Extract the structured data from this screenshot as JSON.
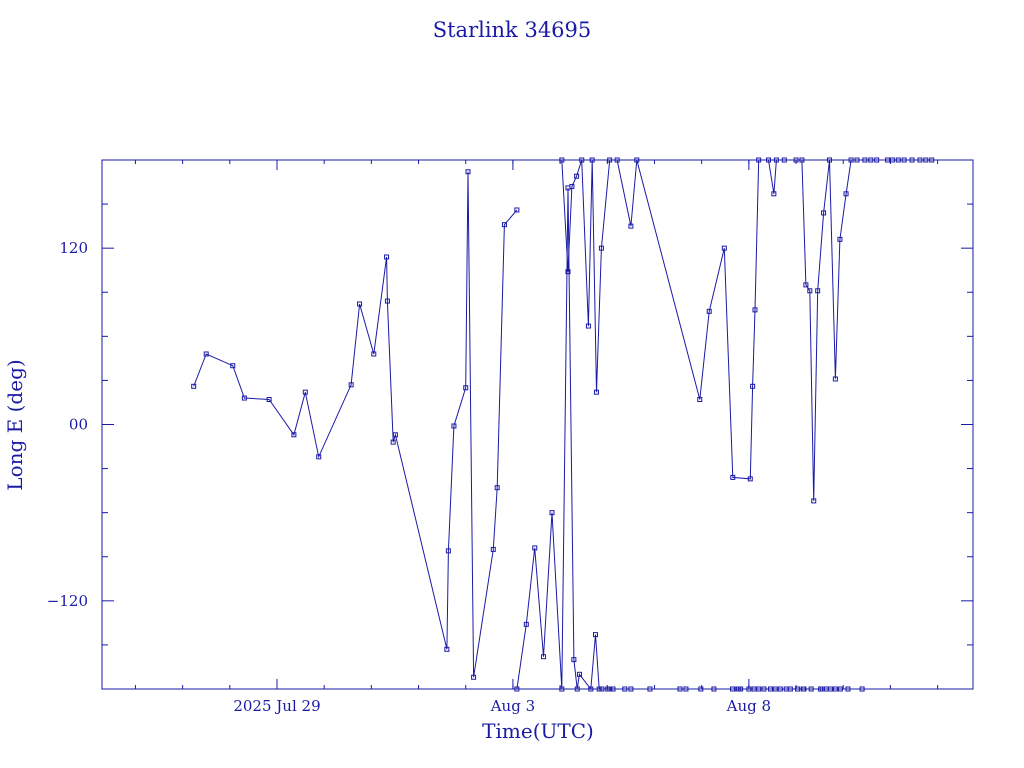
{
  "chart_data": {
    "type": "line",
    "title": "Starlink 34695",
    "xlabel": "Time(UTC)",
    "ylabel": "Long E (deg)",
    "color": "#1a1aa6",
    "grid": false,
    "legend": "none",
    "x_unit": "days",
    "xlim": [
      "2025-07-25T07:00",
      "2025-08-12T18:00"
    ],
    "ylim": [
      -180,
      180
    ],
    "x_ticks": [
      {
        "value": "2025-07-29T00:00",
        "label": "2025 Jul 29"
      },
      {
        "value": "2025-08-03T00:00",
        "label": "Aug  3"
      },
      {
        "value": "2025-08-08T00:00",
        "label": "Aug  8"
      }
    ],
    "y_ticks": [
      {
        "value": 120,
        "label": "120"
      },
      {
        "value": 0,
        "label": "00"
      },
      {
        "value": -120,
        "label": "−120"
      }
    ],
    "series": [
      {
        "marker": "square",
        "x": [
          "2025-07-27T05:38",
          "2025-07-27T12:00",
          "2025-07-28T01:31",
          "2025-07-28T07:25",
          "2025-07-28T20:00",
          "2025-07-29T08:36",
          "2025-07-29T14:24",
          "2025-07-29T21:13",
          "2025-07-30T13:43",
          "2025-07-30T18:00",
          "2025-07-31T01:14",
          "2025-07-31T07:44",
          "2025-07-31T08:10",
          "2025-07-31T11:06",
          "2025-07-31T12:14",
          "2025-08-01T14:24",
          "2025-08-01T15:11",
          "2025-08-01T18:00",
          "2025-08-02T00:00",
          "2025-08-02T01:10",
          "2025-08-02T04:00",
          "2025-08-02T14:00",
          "2025-08-02T16:00",
          "2025-08-02T19:41",
          "2025-08-03T02:00"
        ],
        "y": [
          26,
          48,
          40,
          18,
          17,
          -7,
          22,
          -22,
          27,
          82,
          48,
          114,
          84,
          -12,
          -7,
          -153,
          -86,
          -1,
          25,
          172,
          -172,
          -85,
          -43,
          136,
          146
        ]
      },
      {
        "marker": "square",
        "x": [
          "2025-08-03T02:00",
          "2025-08-03T06:48",
          "2025-08-03T11:06",
          "2025-08-03T15:34",
          "2025-08-03T19:53",
          "2025-08-04T00:53",
          "2025-08-04T04:00",
          "2025-08-04T07:00",
          "2025-08-04T08:43",
          "2025-08-04T09:50",
          "2025-08-04T15:36",
          "2025-08-04T18:00",
          "2025-08-04T19:53",
          "2025-08-04T21:17",
          "2025-08-05T00:14",
          "2025-08-05T01:17",
          "2025-08-05T02:53",
          "2025-08-05T08:53",
          "2025-08-05T12:00",
          "2025-08-05T21:41",
          "2025-08-06T12:58",
          "2025-08-06T16:00",
          "2025-08-06T23:35",
          "2025-08-07T06:14",
          "2025-08-07T15:41",
          "2025-08-07T18:00",
          "2025-08-07T18:48",
          "2025-08-07T19:48",
          "2025-08-08T00:00",
          "2025-08-08T02:40",
          "2025-08-08T05:00",
          "2025-08-08T07:41",
          "2025-08-08T11:00",
          "2025-08-08T13:26",
          "2025-08-08T16:00",
          "2025-08-08T19:00",
          "2025-08-08T21:07",
          "2025-08-09T00:43",
          "2025-08-09T03:36",
          "2025-08-09T04:00",
          "2025-08-09T07:41",
          "2025-08-09T12:29",
          "2025-08-09T13:20",
          "2025-08-09T15:22",
          "2025-08-09T17:30",
          "2025-08-09T20:00",
          "2025-08-09T22:34",
          "2025-08-10T02:24",
          "2025-08-10T09:36"
        ],
        "y": [
          -180,
          -136,
          -84,
          -158,
          -60,
          -180,
          161,
          -160,
          -180,
          -170,
          -180,
          -143,
          -180,
          -180,
          -180,
          -180,
          -180,
          -180,
          -180,
          -180,
          -180,
          -180,
          -180,
          -180,
          -180,
          -180,
          -180,
          -180,
          -180,
          -180,
          -180,
          -180,
          -180,
          -180,
          -180,
          -180,
          -180,
          -180,
          -180,
          -180,
          -180,
          -180,
          -180,
          -180,
          -180,
          -180,
          -180,
          -180,
          -180
        ]
      },
      {
        "marker": "square",
        "x": [
          "2025-08-04T00:53",
          "2025-08-04T04:00",
          "2025-08-04T06:00",
          "2025-08-04T08:24",
          "2025-08-04T11:00",
          "2025-08-04T14:24",
          "2025-08-04T16:19",
          "2025-08-04T18:29",
          "2025-08-04T21:00",
          "2025-08-05T01:12",
          "2025-08-05T05:00",
          "2025-08-05T12:00",
          "2025-08-05T15:00",
          "2025-08-06T23:02",
          "2025-08-07T03:50",
          "2025-08-07T11:31",
          "2025-08-07T15:50",
          "2025-08-08T00:43",
          "2025-08-08T01:55",
          "2025-08-08T03:07",
          "2025-08-08T05:00",
          "2025-08-08T10:00",
          "2025-08-08T12:43",
          "2025-08-08T14:00"
        ],
        "y": [
          180,
          104,
          162,
          169,
          180,
          67,
          180,
          22,
          120,
          180,
          180,
          135,
          180,
          17,
          77,
          120,
          -36,
          -37,
          26,
          78,
          180,
          180,
          157,
          180
        ]
      },
      {
        "marker": "square",
        "x": [
          "2025-08-08T18:00",
          "2025-08-09T00:00",
          "2025-08-09T03:00",
          "2025-08-09T05:00",
          "2025-08-09T07:00",
          "2025-08-09T09:00",
          "2025-08-09T11:00",
          "2025-08-09T14:00",
          "2025-08-09T17:00",
          "2025-08-09T20:00",
          "2025-08-09T22:19",
          "2025-08-10T01:26",
          "2025-08-10T04:00",
          "2025-08-10T07:00",
          "2025-08-10T11:00",
          "2025-08-10T14:00",
          "2025-08-10T17:00",
          "2025-08-10T22:34",
          "2025-08-11T01:00",
          "2025-08-11T04:00",
          "2025-08-11T07:00",
          "2025-08-11T11:00",
          "2025-08-11T15:00",
          "2025-08-11T18:00",
          "2025-08-11T21:00"
        ],
        "y": [
          180,
          180,
          180,
          95,
          91,
          -52,
          91,
          144,
          180,
          31,
          126,
          157,
          180,
          180,
          180,
          180,
          180,
          180,
          180,
          180,
          180,
          180,
          180,
          180,
          180
        ]
      }
    ]
  }
}
